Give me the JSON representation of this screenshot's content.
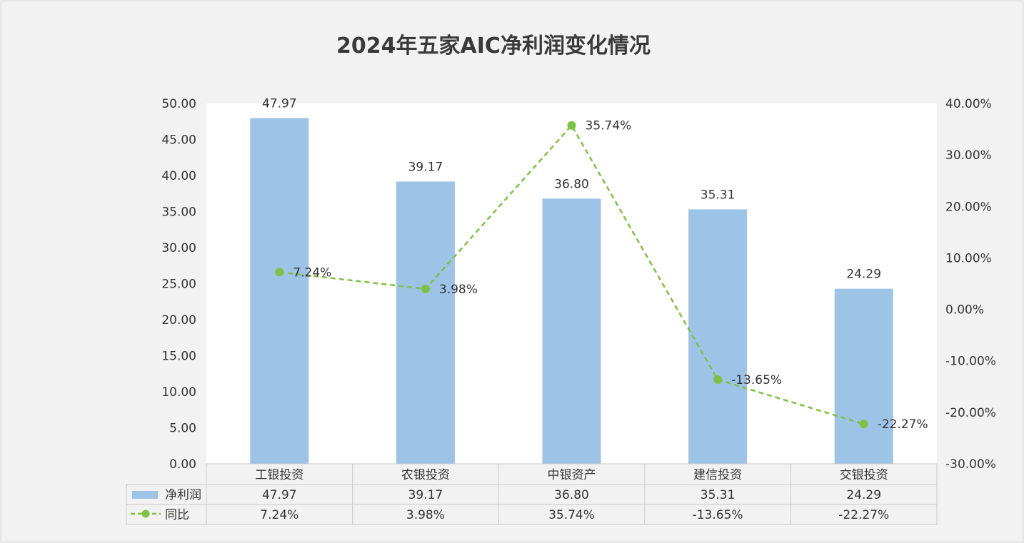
{
  "chart_data": {
    "type": "bar",
    "title": "2024年五家AIC净利润变化情况",
    "categories": [
      "工银投资",
      "农银投资",
      "中银资产",
      "建信投资",
      "交银投资"
    ],
    "series": [
      {
        "name": "净利润",
        "type": "bar",
        "axis": "left",
        "color": "#9DC3E6",
        "values": [
          47.97,
          39.17,
          36.8,
          35.31,
          24.29
        ],
        "labels": [
          "47.97",
          "39.17",
          "36.80",
          "35.31",
          "24.29"
        ]
      },
      {
        "name": "同比",
        "type": "line",
        "axis": "right",
        "style": "dashed-with-markers",
        "color": "#7DC242",
        "values": [
          7.24,
          3.98,
          35.74,
          -13.65,
          -22.27
        ],
        "labels": [
          "7.24%",
          "3.98%",
          "35.74%",
          "-13.65%",
          "-22.27%"
        ]
      }
    ],
    "ylim": [
      0,
      50
    ],
    "y_ticks": [
      "0.00",
      "5.00",
      "10.00",
      "15.00",
      "20.00",
      "25.00",
      "30.00",
      "35.00",
      "40.00",
      "45.00",
      "50.00"
    ],
    "y2lim": [
      -30,
      40
    ],
    "y2_ticks": [
      "-30.00%",
      "-20.00%",
      "-10.00%",
      "0.00%",
      "10.00%",
      "20.00%",
      "30.00%",
      "40.00%"
    ],
    "grid": false,
    "legend": "data-table-bottom",
    "data_table": true
  }
}
